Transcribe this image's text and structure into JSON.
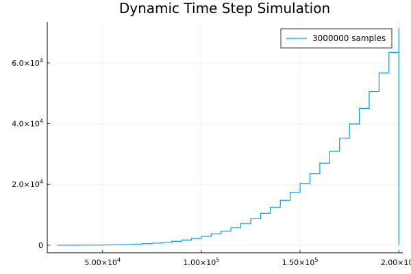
{
  "chart_data": {
    "type": "line",
    "title": "Dynamic Time Step Simulation",
    "xlabel": "",
    "ylabel": "",
    "xlim": [
      22000,
      202000
    ],
    "ylim": [
      -2500,
      73500
    ],
    "x_ticks": [
      {
        "value": 50000,
        "mantissa": "5.00×10",
        "exp": "4"
      },
      {
        "value": 100000,
        "mantissa": "1.00×10",
        "exp": "5"
      },
      {
        "value": 150000,
        "mantissa": "1.50×10",
        "exp": "5"
      },
      {
        "value": 200000,
        "mantissa": "2.00×10",
        "exp": "5"
      }
    ],
    "y_ticks": [
      {
        "value": 0,
        "mantissa": "0",
        "exp": ""
      },
      {
        "value": 20000,
        "mantissa": "2.0×10",
        "exp": "4"
      },
      {
        "value": 40000,
        "mantissa": "4.0×10",
        "exp": "4"
      },
      {
        "value": 60000,
        "mantissa": "6.0×10",
        "exp": "4"
      }
    ],
    "grid": true,
    "legend_position": "top-right",
    "series": [
      {
        "name": "3000000 samples",
        "color": "#009AFA",
        "step": true,
        "x": [
          27000,
          40000,
          50000,
          55000,
          60000,
          65000,
          70000,
          75000,
          80000,
          85000,
          90000,
          95000,
          100000,
          105000,
          110000,
          115000,
          120000,
          125000,
          130000,
          135000,
          140000,
          145000,
          150000,
          155000,
          160000,
          165000,
          170000,
          175000,
          180000,
          185000,
          190000,
          195000,
          200000,
          200000
        ],
        "y": [
          0,
          20,
          80,
          140,
          220,
          330,
          480,
          670,
          930,
          1270,
          1700,
          2240,
          2900,
          3700,
          4650,
          5800,
          7150,
          8700,
          10500,
          12500,
          14800,
          17400,
          20300,
          23500,
          27000,
          30900,
          35200,
          39900,
          45000,
          50600,
          56700,
          63500,
          71500,
          0
        ]
      }
    ]
  }
}
